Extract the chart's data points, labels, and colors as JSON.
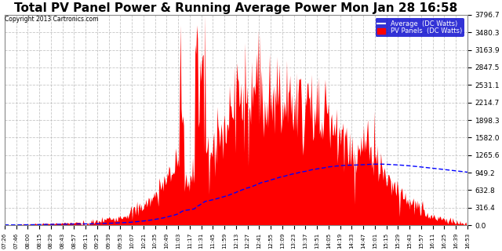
{
  "title": "Total PV Panel Power & Running Average Power Mon Jan 28 16:58",
  "copyright": "Copyright 2013 Cartronics.com",
  "legend_avg": "Average  (DC Watts)",
  "legend_pv": "PV Panels  (DC Watts)",
  "y_max": 3796.7,
  "y_ticks": [
    0.0,
    316.4,
    632.8,
    949.2,
    1265.6,
    1582.0,
    1898.3,
    2214.7,
    2531.1,
    2847.5,
    3163.9,
    3480.3,
    3796.7
  ],
  "background_color": "#ffffff",
  "plot_bg_color": "#ffffff",
  "grid_color": "#c0c0c0",
  "pv_color": "#ff0000",
  "avg_color": "#0000ff",
  "title_fontsize": 11,
  "x_tick_labels": [
    "07:26",
    "07:46",
    "08:00",
    "08:15",
    "08:29",
    "08:43",
    "08:57",
    "09:11",
    "09:25",
    "09:39",
    "09:53",
    "10:07",
    "10:21",
    "10:35",
    "10:49",
    "11:03",
    "11:17",
    "11:31",
    "11:45",
    "11:59",
    "12:13",
    "12:27",
    "12:41",
    "12:55",
    "13:09",
    "13:23",
    "13:37",
    "13:51",
    "14:05",
    "14:19",
    "14:33",
    "14:47",
    "15:01",
    "15:15",
    "15:29",
    "15:43",
    "15:57",
    "16:11",
    "16:25",
    "16:39",
    "16:53"
  ]
}
